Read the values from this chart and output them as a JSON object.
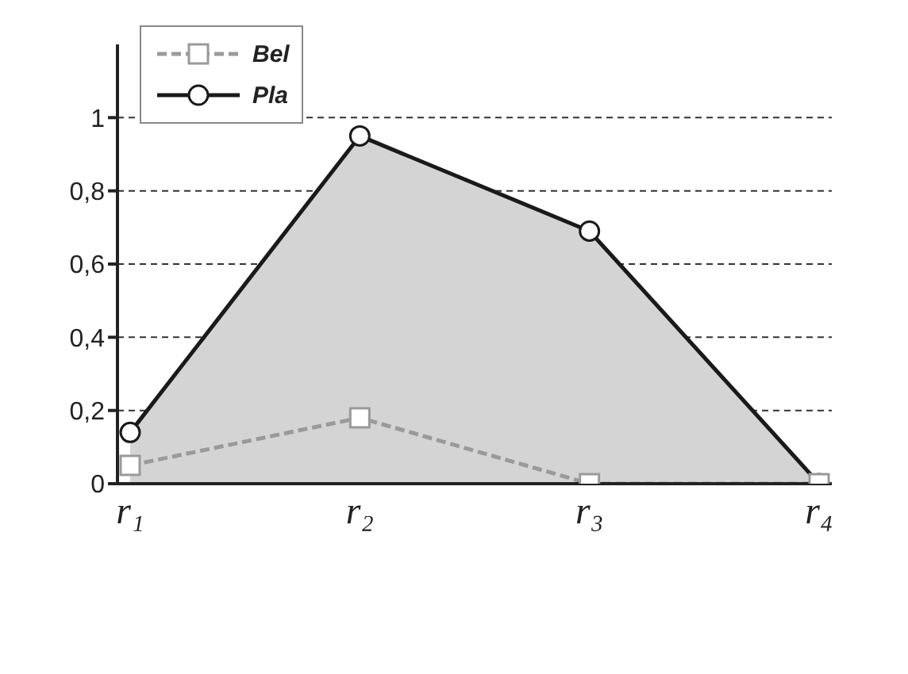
{
  "chart_data": {
    "type": "line",
    "categories": [
      "r₁",
      "r₂",
      "r₃",
      "r₄"
    ],
    "series": [
      {
        "name": "Bel",
        "color": "#9a9a9a",
        "marker": "square",
        "line_style": "dashed",
        "values": [
          0.05,
          0.18,
          0,
          0
        ]
      },
      {
        "name": "Pla",
        "type": "area",
        "color": "#1a1a1a",
        "marker": "circle",
        "line_style": "solid",
        "values": [
          0.14,
          0.95,
          0.69,
          0
        ]
      }
    ],
    "ylim": [
      0,
      1.2
    ],
    "yticks": [
      0,
      {
        "value": 0.2,
        "label": "0,2"
      },
      {
        "value": 0.4,
        "label": "0,4"
      },
      {
        "value": 0.6,
        "label": "0,6"
      },
      {
        "value": 0.8,
        "label": "0,8"
      },
      1
    ],
    "grid": "y",
    "legend": "top left"
  }
}
